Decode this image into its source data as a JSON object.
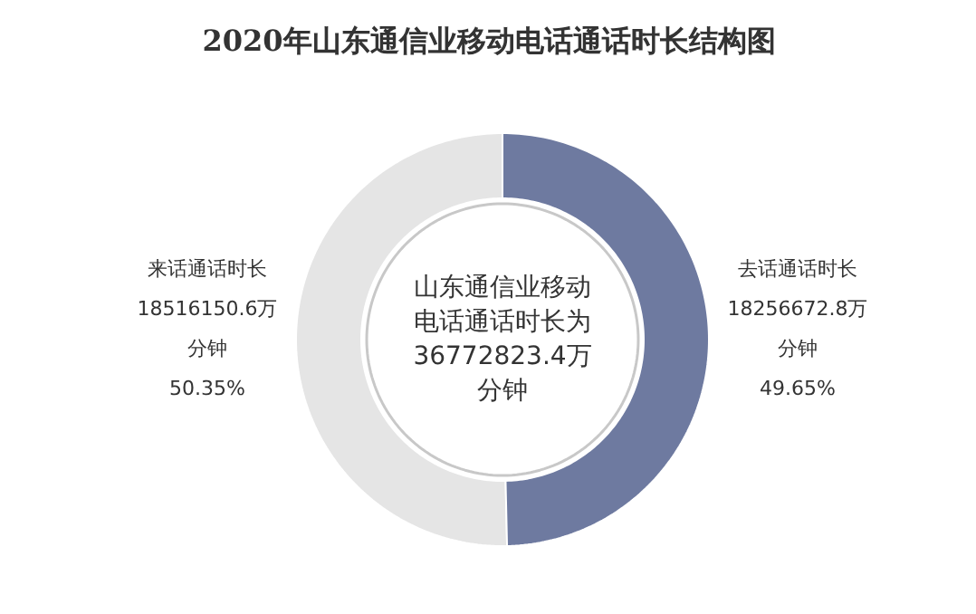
{
  "chart_data": {
    "type": "donut",
    "title": "2020年山东通信业移动电话通话时长结构图",
    "categories": [
      "来话通话时长",
      "去话通话时长"
    ],
    "values": [
      18516150.6,
      18256672.8
    ],
    "colors": [
      "#e5e5e5",
      "#6e7aa0"
    ],
    "value_labels": [
      "18516150.6万分钟 50.35%",
      "18256672.8万分钟 49.65%"
    ],
    "annotations": [
      "山东通信业移动电话通话时长为36772823.4万分钟"
    ]
  }
}
